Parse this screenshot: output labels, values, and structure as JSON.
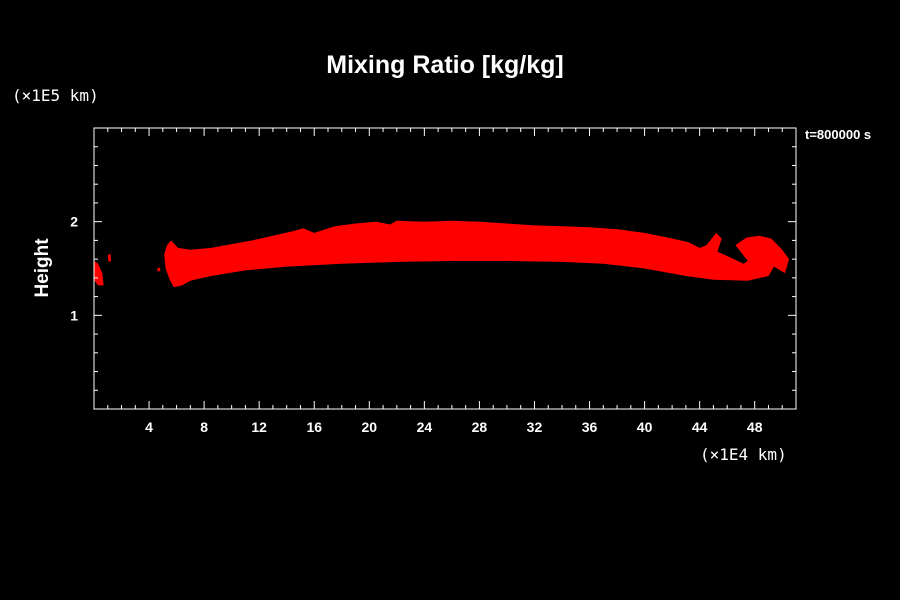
{
  "chart_data": {
    "type": "heatmap",
    "title": "Mixing Ratio [kg/kg]",
    "xlabel": "",
    "ylabel": "Height",
    "x_unit_label": "(×1E4 km)",
    "y_unit_label": "(×1E5 km)",
    "time_label": "t=800000 s",
    "xlim": [
      0,
      51
    ],
    "ylim": [
      0,
      3
    ],
    "x_ticks": [
      4,
      8,
      12,
      16,
      20,
      24,
      28,
      32,
      36,
      40,
      44,
      48
    ],
    "y_ticks": [
      1,
      2
    ],
    "x_minor_step": 1,
    "y_minor_step": 0.2,
    "grid": false,
    "background_color": "#000000",
    "fill_color": "#ff0000",
    "regions": [
      {
        "name": "main-band",
        "polygon": [
          [
            5.3,
            1.75
          ],
          [
            5.6,
            1.8
          ],
          [
            6.1,
            1.72
          ],
          [
            7.0,
            1.7
          ],
          [
            8.5,
            1.72
          ],
          [
            10.0,
            1.76
          ],
          [
            11.5,
            1.8
          ],
          [
            13.0,
            1.85
          ],
          [
            14.5,
            1.9
          ],
          [
            15.2,
            1.93
          ],
          [
            16.0,
            1.88
          ],
          [
            17.5,
            1.95
          ],
          [
            19.0,
            1.98
          ],
          [
            20.5,
            2.0
          ],
          [
            21.5,
            1.97
          ],
          [
            22.0,
            2.01
          ],
          [
            24.0,
            2.0
          ],
          [
            26.0,
            2.01
          ],
          [
            28.0,
            2.0
          ],
          [
            30.0,
            1.98
          ],
          [
            32.0,
            1.96
          ],
          [
            34.0,
            1.95
          ],
          [
            36.0,
            1.94
          ],
          [
            38.0,
            1.92
          ],
          [
            40.0,
            1.88
          ],
          [
            42.0,
            1.82
          ],
          [
            43.2,
            1.78
          ],
          [
            44.0,
            1.72
          ],
          [
            44.5,
            1.75
          ],
          [
            45.2,
            1.88
          ],
          [
            45.6,
            1.82
          ],
          [
            45.3,
            1.68
          ],
          [
            46.2,
            1.62
          ],
          [
            47.2,
            1.55
          ],
          [
            47.5,
            1.58
          ],
          [
            46.6,
            1.75
          ],
          [
            47.4,
            1.83
          ],
          [
            48.3,
            1.85
          ],
          [
            49.2,
            1.82
          ],
          [
            50.0,
            1.7
          ],
          [
            50.5,
            1.6
          ],
          [
            50.2,
            1.45
          ],
          [
            49.4,
            1.52
          ],
          [
            49.0,
            1.42
          ],
          [
            47.5,
            1.37
          ],
          [
            45.0,
            1.38
          ],
          [
            43.0,
            1.42
          ],
          [
            40.0,
            1.5
          ],
          [
            37.0,
            1.55
          ],
          [
            34.0,
            1.57
          ],
          [
            30.0,
            1.58
          ],
          [
            26.0,
            1.58
          ],
          [
            22.0,
            1.57
          ],
          [
            18.0,
            1.55
          ],
          [
            14.0,
            1.52
          ],
          [
            11.0,
            1.48
          ],
          [
            8.5,
            1.42
          ],
          [
            7.0,
            1.37
          ],
          [
            6.4,
            1.32
          ],
          [
            5.8,
            1.3
          ],
          [
            5.5,
            1.38
          ],
          [
            5.2,
            1.5
          ],
          [
            5.1,
            1.65
          ]
        ]
      },
      {
        "name": "left-edge-blob",
        "polygon": [
          [
            0.0,
            1.58
          ],
          [
            0.3,
            1.55
          ],
          [
            0.6,
            1.45
          ],
          [
            0.7,
            1.32
          ],
          [
            0.3,
            1.32
          ],
          [
            0.0,
            1.38
          ]
        ]
      },
      {
        "name": "small-speck-a",
        "polygon": [
          [
            1.0,
            1.64
          ],
          [
            1.2,
            1.66
          ],
          [
            1.25,
            1.58
          ],
          [
            1.05,
            1.57
          ]
        ]
      },
      {
        "name": "small-speck-b",
        "polygon": [
          [
            4.6,
            1.5
          ],
          [
            4.8,
            1.51
          ],
          [
            4.8,
            1.47
          ],
          [
            4.6,
            1.47
          ]
        ]
      }
    ]
  }
}
